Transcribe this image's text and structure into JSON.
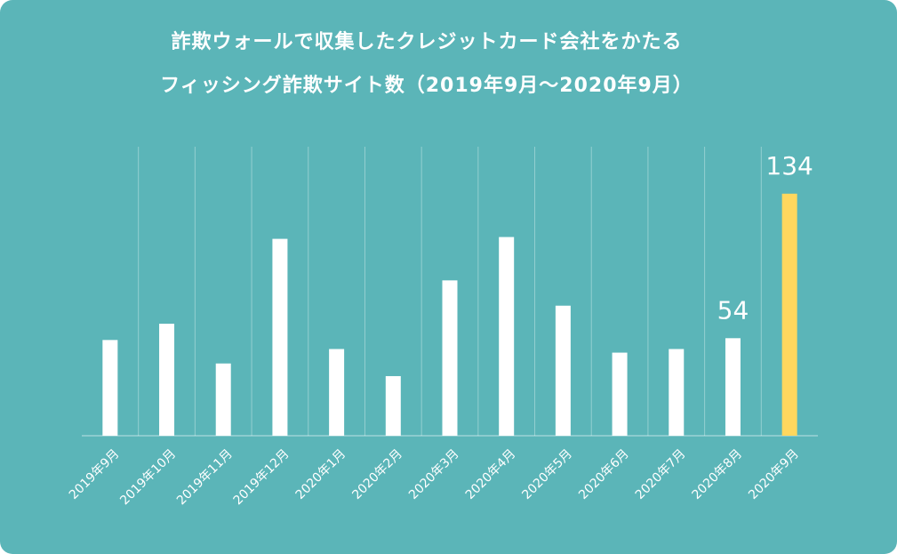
{
  "chart_data": {
    "type": "bar",
    "title": [
      "詐欺ウォールで収集したクレジットカード会社をかたる",
      "フィッシング詐欺サイト数（2019年9月～2020年9月）"
    ],
    "categories": [
      "2019年9月",
      "2019年10月",
      "2019年11月",
      "2019年12月",
      "2020年1月",
      "2020年2月",
      "2020年3月",
      "2020年4月",
      "2020年5月",
      "2020年6月",
      "2020年7月",
      "2020年8月",
      "2020年9月"
    ],
    "values": [
      53,
      62,
      40,
      109,
      48,
      33,
      86,
      110,
      72,
      46,
      48,
      54,
      134
    ],
    "value_labels": [
      null,
      null,
      null,
      null,
      null,
      null,
      null,
      null,
      null,
      null,
      null,
      "54",
      "134"
    ],
    "colors": [
      "#ffffff",
      "#ffffff",
      "#ffffff",
      "#ffffff",
      "#ffffff",
      "#ffffff",
      "#ffffff",
      "#ffffff",
      "#ffffff",
      "#ffffff",
      "#ffffff",
      "#ffffff",
      "#ffd75e"
    ],
    "ylim": [
      0,
      160
    ],
    "grid": true
  }
}
